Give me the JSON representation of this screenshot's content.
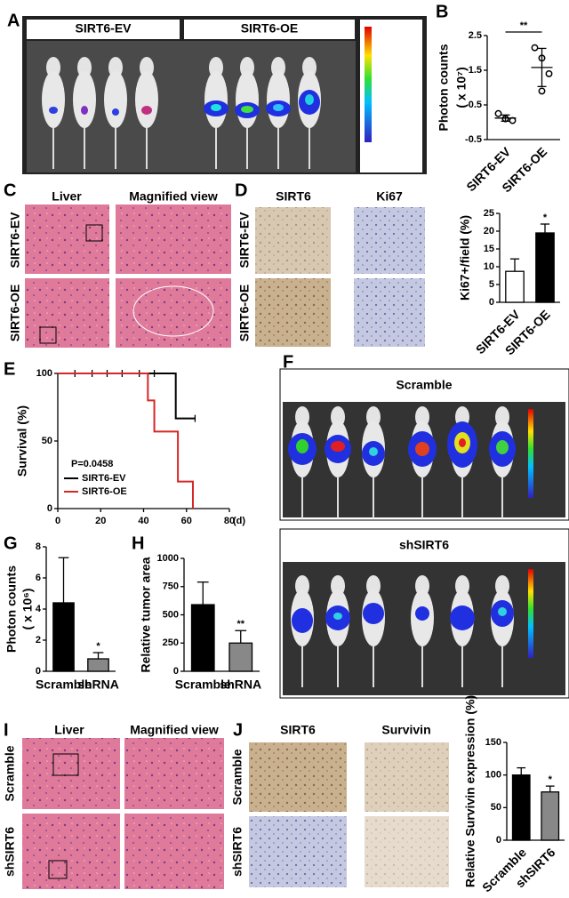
{
  "panel_labels": [
    "A",
    "B",
    "C",
    "D",
    "E",
    "F",
    "G",
    "H",
    "I",
    "J"
  ],
  "panel_a": {
    "columns": [
      "SIRT6-EV",
      "SIRT6-OE"
    ]
  },
  "panel_c": {
    "columns": [
      "Liver",
      "Magnified view"
    ],
    "rows": [
      "SIRT6-EV",
      "SIRT6-OE"
    ]
  },
  "panel_d": {
    "columns": [
      "SIRT6",
      "Ki67"
    ],
    "rows": [
      "SIRT6-EV",
      "SIRT6-OE"
    ]
  },
  "panel_f": {
    "headers": [
      "Scramble",
      "shSIRT6"
    ]
  },
  "panel_i": {
    "columns": [
      "Liver",
      "Magnified view"
    ],
    "rows": [
      "Scramble",
      "shSIRT6"
    ]
  },
  "panel_j": {
    "columns": [
      "SIRT6",
      "Survivin"
    ],
    "rows": [
      "Scramble",
      "shSIRT6"
    ]
  },
  "chart_data": [
    {
      "type": "dot",
      "y_label": "Photon counts",
      "y_label_unit": "( x 10⁷)",
      "categories": [
        "SIRT6-EV",
        "SIRT6-OE"
      ],
      "points": [
        [
          0.25,
          0.1,
          0.05,
          0.1
        ],
        [
          2.15,
          1.85,
          1.4,
          0.9
        ]
      ],
      "values": [
        0.12,
        1.58
      ],
      "errors": [
        0.09,
        0.55
      ],
      "color": "#000000",
      "ylim": [
        -0.5,
        2.5
      ],
      "yticks": [
        -0.5,
        0.5,
        1.5,
        2.5
      ],
      "significance": "**"
    },
    {
      "type": "bar",
      "y_label": "Ki67+/field (%)",
      "categories": [
        "SIRT6-EV",
        "SIRT6-OE"
      ],
      "values": [
        8.7,
        19.5
      ],
      "errors": [
        3.5,
        2.5
      ],
      "colors": [
        "#ffffff",
        "#000000"
      ],
      "ylim": [
        0,
        25
      ],
      "yticks": [
        0,
        5,
        10,
        15,
        20,
        25
      ],
      "significance": "*"
    },
    {
      "type": "line",
      "y_label": "Survival (%)",
      "x_label": "(d)",
      "annotation": "P=0.0458",
      "xlim": [
        0,
        80
      ],
      "xticks": [
        0,
        20,
        40,
        60,
        80
      ],
      "ylim": [
        0,
        100
      ],
      "yticks": [
        0,
        50,
        100
      ],
      "series": [
        {
          "name": "SIRT6-EV",
          "color": "#000000",
          "x": [
            0,
            55,
            55,
            64
          ],
          "y": [
            100,
            100,
            66.7,
            66.7
          ],
          "censored_x": [
            8,
            16,
            23,
            30,
            38,
            45,
            64
          ],
          "censored_y": [
            100,
            100,
            100,
            100,
            100,
            100,
            66.7
          ]
        },
        {
          "name": "SIRT6-OE",
          "color": "#d62728",
          "x": [
            0,
            42,
            42,
            45,
            45,
            56,
            56,
            63,
            63
          ],
          "y": [
            100,
            100,
            80,
            80,
            57,
            57,
            20,
            20,
            0
          ]
        }
      ]
    },
    {
      "type": "bar",
      "y_label": "Photon counts",
      "y_label_unit": "( x 10⁶)",
      "categories": [
        "Scramble",
        "shRNA"
      ],
      "values": [
        4.4,
        0.8
      ],
      "errors": [
        2.9,
        0.4
      ],
      "colors": [
        "#000000",
        "#888888"
      ],
      "ylim": [
        0,
        8
      ],
      "yticks": [
        0,
        2,
        4,
        6,
        8
      ],
      "significance": "*"
    },
    {
      "type": "bar",
      "y_label": "Relative tumor area",
      "categories": [
        "Scramble",
        "shRNA"
      ],
      "values": [
        590,
        250
      ],
      "errors": [
        200,
        110
      ],
      "colors": [
        "#000000",
        "#888888"
      ],
      "ylim": [
        0,
        1000
      ],
      "yticks": [
        0,
        250,
        500,
        750,
        1000
      ],
      "significance": "**"
    },
    {
      "type": "bar",
      "y_label": "Relative Survivin expression (%)",
      "categories": [
        "Scramble",
        "shSIRT6"
      ],
      "values": [
        100,
        74
      ],
      "errors": [
        11,
        9
      ],
      "colors": [
        "#000000",
        "#888888"
      ],
      "ylim": [
        0,
        150
      ],
      "yticks": [
        0,
        50,
        100,
        150
      ],
      "significance": "*"
    }
  ]
}
